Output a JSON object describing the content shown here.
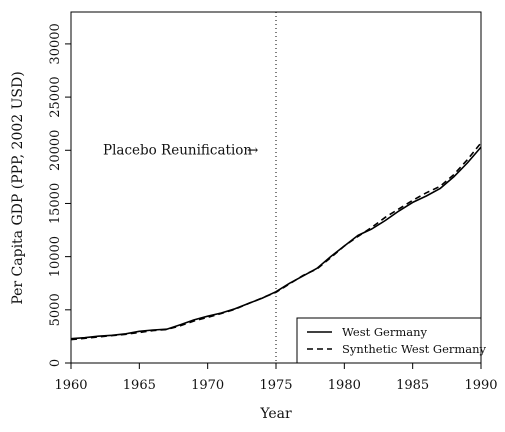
{
  "chart_data": {
    "type": "line",
    "xlabel": "Year",
    "ylabel": "Per Capita GDP (PPP, 2002 USD)",
    "xlim": [
      1960,
      1990
    ],
    "ylim": [
      0,
      33000
    ],
    "xticks": [
      1960,
      1965,
      1970,
      1975,
      1980,
      1985,
      1990
    ],
    "yticks": [
      0,
      5000,
      10000,
      15000,
      20000,
      25000,
      30000
    ],
    "grid": false,
    "legend_position": "bottom-right",
    "annotation": {
      "text": "Placebo Reunification",
      "arrow": "→",
      "x": 1975,
      "y": 20000
    },
    "vline": {
      "x": 1975,
      "style": "dotted"
    },
    "x": [
      1960,
      1961,
      1962,
      1963,
      1964,
      1965,
      1966,
      1967,
      1968,
      1969,
      1970,
      1971,
      1972,
      1973,
      1974,
      1975,
      1976,
      1977,
      1978,
      1979,
      1980,
      1981,
      1982,
      1983,
      1984,
      1985,
      1986,
      1987,
      1988,
      1989,
      1990
    ],
    "series": [
      {
        "name": "West Germany",
        "style": "solid",
        "values": [
          2280,
          2380,
          2520,
          2600,
          2750,
          2980,
          3100,
          3180,
          3600,
          4050,
          4400,
          4700,
          5100,
          5600,
          6100,
          6700,
          7500,
          8200,
          8900,
          10000,
          11000,
          12000,
          12600,
          13400,
          14300,
          15100,
          15700,
          16400,
          17500,
          18800,
          20300
        ]
      },
      {
        "name": "Synthetic West Germany",
        "style": "dashed",
        "values": [
          2200,
          2320,
          2450,
          2580,
          2700,
          2870,
          3050,
          3150,
          3500,
          3950,
          4300,
          4650,
          5050,
          5600,
          6120,
          6650,
          7450,
          8250,
          8850,
          9900,
          11000,
          11900,
          12750,
          13700,
          14500,
          15300,
          16000,
          16600,
          17700,
          19100,
          20700
        ]
      }
    ]
  }
}
